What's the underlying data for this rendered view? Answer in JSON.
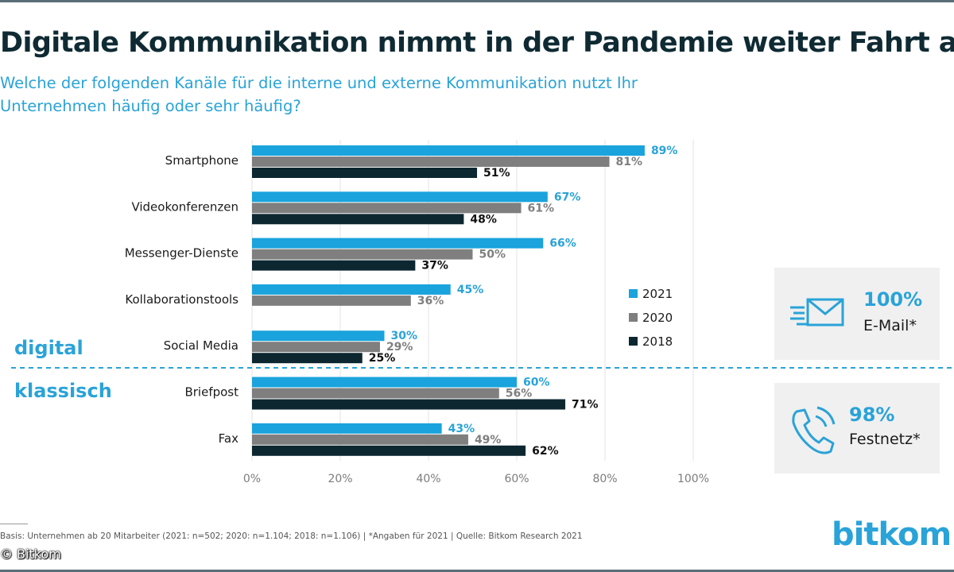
{
  "header": {
    "title": "Digitale Kommunikation nimmt in der Pandemie weiter Fahrt auf",
    "subtitle": "Welche der folgenden Kanäle für die interne und externe Kommunikation nutzt Ihr Unternehmen häufig oder sehr häufig?"
  },
  "chart_data": {
    "type": "bar",
    "orientation": "horizontal",
    "categories": [
      "Smartphone",
      "Videokonferenzen",
      "Messenger-Dienste",
      "Kollaborationstools",
      "Social Media",
      "Briefpost",
      "Fax"
    ],
    "series": [
      {
        "name": "2021",
        "color": "#1aa3dc",
        "label_color": "#2aa3d8",
        "values": [
          89,
          67,
          66,
          45,
          30,
          60,
          43
        ]
      },
      {
        "name": "2020",
        "color": "#7f7f7f",
        "label_color": "#7f7f7f",
        "values": [
          81,
          61,
          50,
          36,
          29,
          56,
          49
        ]
      },
      {
        "name": "2018",
        "color": "#0d2730",
        "label_color": "#111111",
        "values": [
          51,
          48,
          37,
          null,
          25,
          71,
          62
        ]
      }
    ],
    "xlim": [
      0,
      100
    ],
    "xticks": [
      0,
      20,
      40,
      60,
      80,
      100
    ],
    "tick_suffix": "%",
    "grid": true,
    "legend": "right",
    "sections": [
      {
        "label": "digital",
        "categories": [
          "Smartphone",
          "Videokonferenzen",
          "Messenger-Dienste",
          "Kollaborationstools",
          "Social Media"
        ]
      },
      {
        "label": "klassisch",
        "categories": [
          "Briefpost",
          "Fax"
        ]
      }
    ]
  },
  "callouts": [
    {
      "value": "100%",
      "label": "E-Mail*",
      "icon": "email-icon"
    },
    {
      "value": "98%",
      "label": "Festnetz*",
      "icon": "phone-icon"
    }
  ],
  "footer": {
    "note": "Basis: Unternehmen ab 20 Mitarbeiter (2021: n=502; 2020: n=1.104; 2018: n=1.106) | *Angaben für 2021 | Quelle: Bitkom Research 2021",
    "copyright": "© Bitkom",
    "brand": "bitkom"
  }
}
